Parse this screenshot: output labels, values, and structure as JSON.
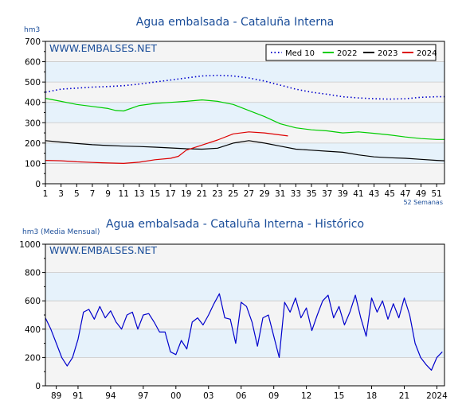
{
  "chart_data": [
    {
      "type": "line",
      "title": "Agua embalsada - Cataluña Interna",
      "ylabel": "hm3",
      "watermark": "WWW.EMBALSES.NET",
      "xlabel_note": "52 Semanas",
      "xlim": [
        1,
        52
      ],
      "ylim": [
        0,
        700
      ],
      "yticks": [
        0,
        100,
        200,
        300,
        400,
        500,
        600,
        700
      ],
      "xticks": [
        1,
        3,
        5,
        7,
        9,
        11,
        13,
        15,
        17,
        19,
        21,
        23,
        25,
        27,
        29,
        31,
        33,
        35,
        37,
        39,
        41,
        43,
        45,
        47,
        49,
        51
      ],
      "grid": true,
      "legend_position": "top-right",
      "series": [
        {
          "name": "Med 10",
          "color": "#0000cc",
          "style": "dotted",
          "x": [
            1,
            3,
            5,
            7,
            9,
            11,
            13,
            15,
            17,
            19,
            21,
            23,
            25,
            27,
            29,
            31,
            33,
            35,
            37,
            39,
            41,
            43,
            45,
            47,
            49,
            51,
            52
          ],
          "y": [
            450,
            465,
            470,
            475,
            478,
            482,
            490,
            500,
            510,
            520,
            530,
            533,
            530,
            520,
            505,
            485,
            465,
            450,
            440,
            428,
            422,
            418,
            416,
            418,
            425,
            428,
            428
          ]
        },
        {
          "name": "2022",
          "color": "#00cc00",
          "style": "solid",
          "x": [
            1,
            3,
            5,
            7,
            9,
            10,
            11,
            13,
            15,
            17,
            19,
            21,
            23,
            25,
            27,
            29,
            31,
            33,
            35,
            37,
            39,
            41,
            43,
            45,
            47,
            49,
            51,
            52
          ],
          "y": [
            420,
            405,
            390,
            380,
            370,
            360,
            358,
            385,
            395,
            400,
            405,
            412,
            405,
            390,
            360,
            330,
            295,
            275,
            265,
            260,
            250,
            255,
            248,
            240,
            230,
            222,
            218,
            218
          ]
        },
        {
          "name": "2023",
          "color": "#000000",
          "style": "solid",
          "x": [
            1,
            3,
            5,
            7,
            9,
            11,
            13,
            15,
            17,
            19,
            21,
            23,
            25,
            27,
            29,
            31,
            33,
            35,
            37,
            39,
            41,
            43,
            45,
            47,
            49,
            51,
            52
          ],
          "y": [
            212,
            205,
            198,
            192,
            188,
            185,
            183,
            180,
            176,
            172,
            170,
            175,
            200,
            212,
            200,
            185,
            170,
            165,
            160,
            155,
            142,
            132,
            128,
            125,
            120,
            115,
            113
          ]
        },
        {
          "name": "2024",
          "color": "#dd0000",
          "style": "solid",
          "x": [
            1,
            3,
            5,
            7,
            9,
            11,
            13,
            15,
            17,
            18,
            19,
            21,
            23,
            25,
            27,
            29,
            31,
            32
          ],
          "y": [
            115,
            113,
            108,
            105,
            102,
            100,
            106,
            118,
            125,
            135,
            165,
            190,
            215,
            245,
            255,
            250,
            240,
            235
          ]
        }
      ]
    },
    {
      "type": "line",
      "title": "Agua embalsada - Cataluña Interna - Histórico",
      "ylabel": "hm3 (Media Mensual)",
      "watermark": "WWW.EMBALSES.NET",
      "xlim": [
        1988,
        2024.7
      ],
      "ylim": [
        0,
        1000
      ],
      "yticks": [
        0,
        200,
        400,
        600,
        800,
        1000
      ],
      "xticks": [
        "89",
        "91",
        "94",
        "97",
        "00",
        "03",
        "06",
        "09",
        "12",
        "15",
        "18",
        "21",
        "2024"
      ],
      "xtick_years": [
        1989,
        1991,
        1994,
        1997,
        2000,
        2003,
        2006,
        2009,
        2012,
        2015,
        2018,
        2021,
        2024
      ],
      "grid": true,
      "series": [
        {
          "name": "",
          "color": "#0000cc",
          "x": [
            1988,
            1988.5,
            1989,
            1989.5,
            1990,
            1990.5,
            1991,
            1991.5,
            1992,
            1992.5,
            1993,
            1993.5,
            1994,
            1994.5,
            1995,
            1995.5,
            1996,
            1996.5,
            1997,
            1997.5,
            1998,
            1998.5,
            1999,
            1999.5,
            2000,
            2000.5,
            2001,
            2001.5,
            2002,
            2002.5,
            2003,
            2003.5,
            2004,
            2004.5,
            2005,
            2005.5,
            2006,
            2006.5,
            2007,
            2007.5,
            2008,
            2008.5,
            2009,
            2009.5,
            2010,
            2010.5,
            2011,
            2011.5,
            2012,
            2012.5,
            2013,
            2013.5,
            2014,
            2014.5,
            2015,
            2015.5,
            2016,
            2016.5,
            2017,
            2017.5,
            2018,
            2018.5,
            2019,
            2019.5,
            2020,
            2020.5,
            2021,
            2021.5,
            2022,
            2022.5,
            2023,
            2023.5,
            2024,
            2024.5
          ],
          "y": [
            480,
            400,
            300,
            200,
            140,
            200,
            330,
            520,
            540,
            470,
            560,
            480,
            530,
            450,
            400,
            500,
            520,
            400,
            500,
            510,
            450,
            380,
            380,
            240,
            220,
            320,
            260,
            450,
            480,
            430,
            500,
            580,
            650,
            480,
            470,
            300,
            590,
            560,
            450,
            280,
            480,
            500,
            350,
            200,
            590,
            520,
            620,
            480,
            550,
            390,
            500,
            600,
            640,
            480,
            560,
            430,
            520,
            640,
            480,
            350,
            620,
            520,
            600,
            470,
            580,
            480,
            620,
            500,
            300,
            200,
            150,
            110,
            200,
            240
          ]
        }
      ]
    }
  ]
}
